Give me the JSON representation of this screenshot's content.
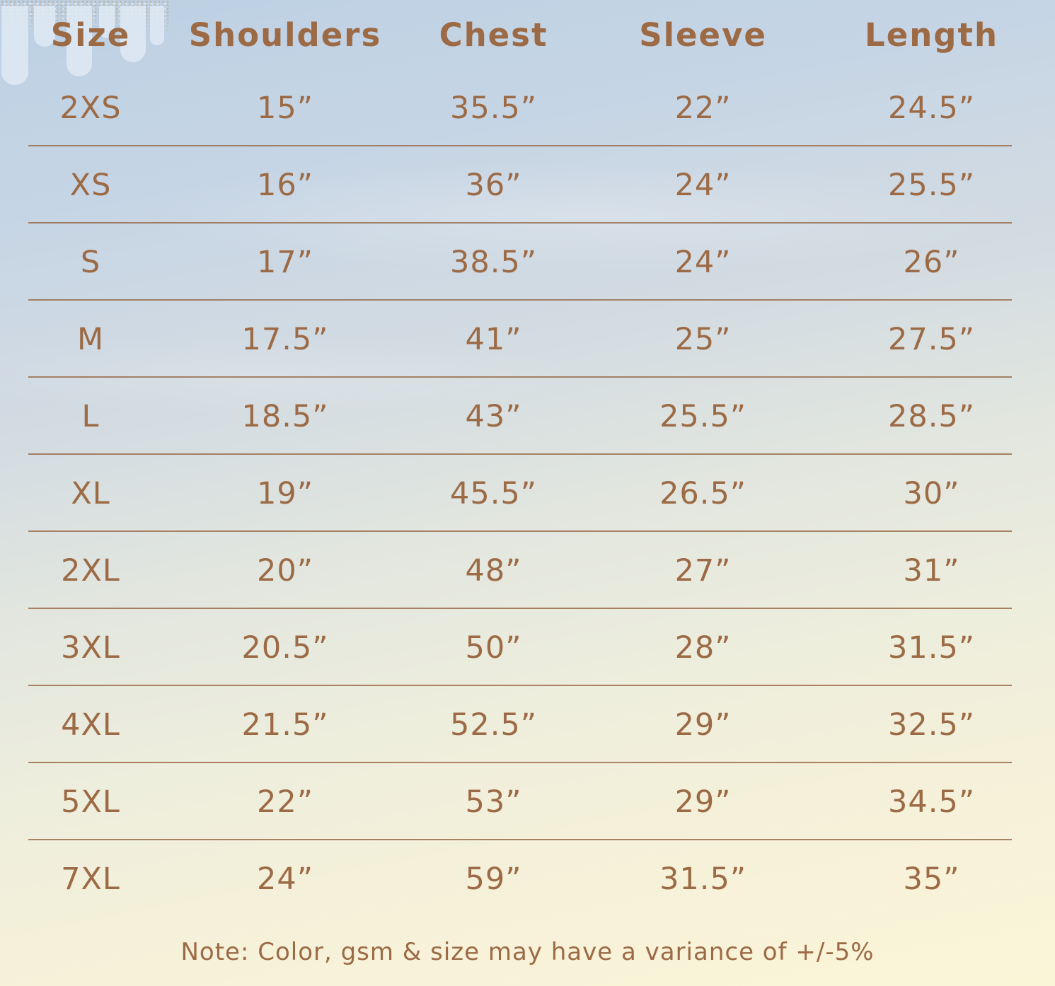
{
  "chart_data": {
    "type": "table",
    "columns": [
      "Size",
      "Shoulders",
      "Chest",
      "Sleeve",
      "Length"
    ],
    "rows": [
      {
        "size": "2XS",
        "values": [
          "15”",
          "35.5”",
          "22”",
          "24.5”"
        ]
      },
      {
        "size": "XS",
        "values": [
          "16”",
          "36”",
          "24”",
          "25.5”"
        ]
      },
      {
        "size": "S",
        "values": [
          "17”",
          "38.5”",
          "24”",
          "26”"
        ]
      },
      {
        "size": "M",
        "values": [
          "17.5”",
          "41”",
          "25”",
          "27.5”"
        ]
      },
      {
        "size": "L",
        "values": [
          "18.5”",
          "43”",
          "25.5”",
          "28.5”"
        ]
      },
      {
        "size": "XL",
        "values": [
          "19”",
          "45.5”",
          "26.5”",
          "30”"
        ]
      },
      {
        "size": "2XL",
        "values": [
          "20”",
          "48”",
          "27”",
          "31”"
        ]
      },
      {
        "size": "3XL",
        "values": [
          "20.5”",
          "50”",
          "28”",
          "31.5”"
        ]
      },
      {
        "size": "4XL",
        "values": [
          "21.5”",
          "52.5”",
          "29”",
          "32.5”"
        ]
      },
      {
        "size": "5XL",
        "values": [
          "22”",
          "53”",
          "29”",
          "34.5”"
        ]
      },
      {
        "size": "7XL",
        "values": [
          "24”",
          "59”",
          "31.5”",
          "35”"
        ]
      }
    ],
    "note": "Note: Color, gsm & size may have a variance of +/-5%"
  },
  "colors": {
    "text": "#9c6a45",
    "divider": "#9b6f4d",
    "bg_top": "#bcd0e3",
    "bg_bottom": "#fbf5d8"
  }
}
